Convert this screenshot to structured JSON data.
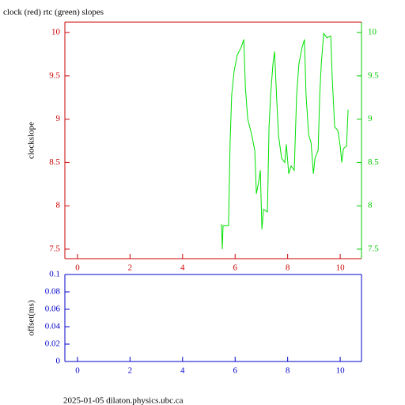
{
  "chart_data": [
    {
      "type": "line",
      "title": "clock (red) rtc (green) slopes",
      "ylabel": "clockslope",
      "xlim": [
        -0.48,
        10.81
      ],
      "xticks": [
        0,
        2,
        4,
        6,
        8,
        10
      ],
      "ylim": [
        7.39,
        10.12
      ],
      "yticks": [
        7.5,
        8,
        8.5,
        9,
        9.5,
        10
      ],
      "y2lim": [
        7.39,
        10.12
      ],
      "y2ticks": [
        7.5,
        8,
        8.5,
        9,
        9.5,
        10
      ],
      "axis_color": "#cc0000",
      "y2_color": "#00cc00",
      "color": "#00e000",
      "x": [
        5.48,
        5.51,
        5.54,
        5.75,
        5.81,
        5.87,
        5.96,
        6.08,
        6.23,
        6.33,
        6.39,
        6.48,
        6.63,
        6.75,
        6.81,
        6.9,
        6.96,
        7.02,
        7.08,
        7.23,
        7.29,
        7.35,
        7.44,
        7.5,
        7.56,
        7.65,
        7.77,
        7.89,
        7.95,
        8.04,
        8.13,
        8.25,
        8.34,
        8.43,
        8.55,
        8.64,
        8.7,
        8.8,
        8.89,
        8.98,
        9.04,
        9.16,
        9.22,
        9.28,
        9.37,
        9.49,
        9.64,
        9.7,
        9.79,
        9.91,
        10.0,
        10.06,
        10.12,
        10.24,
        10.3
      ],
      "values": [
        7.79,
        7.5,
        7.77,
        7.77,
        8.73,
        9.28,
        9.55,
        9.74,
        9.83,
        9.92,
        9.37,
        9.0,
        8.82,
        8.64,
        8.14,
        8.28,
        8.41,
        7.73,
        7.96,
        7.93,
        8.91,
        9.28,
        9.64,
        9.78,
        9.37,
        8.82,
        8.55,
        8.5,
        8.71,
        8.37,
        8.46,
        8.41,
        9.28,
        9.64,
        9.83,
        9.92,
        9.28,
        8.82,
        8.73,
        8.37,
        8.55,
        8.64,
        9.28,
        9.64,
        9.99,
        9.94,
        9.96,
        9.46,
        8.91,
        8.87,
        8.69,
        8.5,
        8.66,
        8.69,
        9.11
      ]
    },
    {
      "type": "line",
      "ylabel": "offset(ms)",
      "xlim": [
        -0.48,
        10.81
      ],
      "xticks": [
        0,
        2,
        4,
        6,
        8,
        10
      ],
      "ylim": [
        0,
        0.1
      ],
      "yticks": [
        0,
        0.02,
        0.04,
        0.06,
        0.08,
        0.1
      ],
      "axis_color": "#0000cc",
      "x": [],
      "values": []
    }
  ],
  "footer": "2025-01-05 dilaton.physics.ubc.ca"
}
